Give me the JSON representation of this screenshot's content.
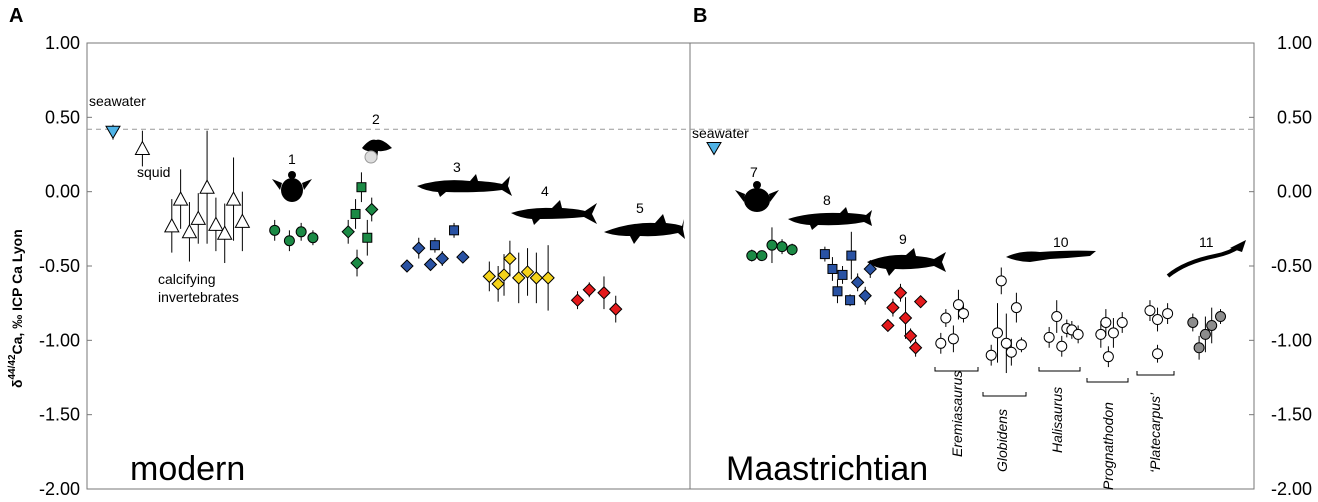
{
  "chart_data": {
    "type": "scatter",
    "ylabel": {
      "main": "δ",
      "sup": "44/42",
      "rest": "Ca, ‰ ICP Ca Lyon"
    },
    "ylim": [
      -2.0,
      1.0
    ],
    "yticks": [
      "1.00",
      "0.50",
      "0.00",
      "-0.50",
      "-1.00",
      "-1.50",
      "-2.00"
    ],
    "reference_line": {
      "label": "seawater",
      "y": 0.42,
      "style": "dashed"
    },
    "panels": [
      {
        "letter": "A",
        "era": "modern",
        "annotations": [
          "seawater",
          "squid",
          "calcifying",
          "invertebrates"
        ],
        "group_numbers": [
          "1",
          "2",
          "3",
          "4",
          "5"
        ],
        "series": [
          {
            "name": "seawater",
            "marker": "triangle-down",
            "color": "#4fb3e6",
            "points": [
              {
                "x": 1,
                "y": 0.4,
                "err": 0.05
              }
            ]
          },
          {
            "name": "squid",
            "marker": "triangle-up",
            "color": "#ffffff",
            "points": [
              {
                "x": 2,
                "y": 0.29,
                "err": 0.12
              }
            ]
          },
          {
            "name": "calcifying invertebrates",
            "marker": "triangle-up",
            "color": "#ffffff",
            "points": [
              {
                "x": 3.0,
                "y": -0.23,
                "err": 0.18
              },
              {
                "x": 3.3,
                "y": -0.05,
                "err": 0.2
              },
              {
                "x": 3.6,
                "y": -0.27,
                "err": 0.2
              },
              {
                "x": 3.9,
                "y": -0.18,
                "err": 0.17
              },
              {
                "x": 4.2,
                "y": 0.03,
                "err": 0.38
              },
              {
                "x": 4.5,
                "y": -0.22,
                "err": 0.18
              },
              {
                "x": 4.8,
                "y": -0.28,
                "err": 0.2
              },
              {
                "x": 5.1,
                "y": -0.05,
                "err": 0.28
              },
              {
                "x": 5.4,
                "y": -0.2,
                "err": 0.2
              }
            ]
          },
          {
            "name": "1",
            "marker": "circle",
            "color": "#1b8a45",
            "points": [
              {
                "x": 6.5,
                "y": -0.26,
                "err": 0.07
              },
              {
                "x": 7.0,
                "y": -0.33,
                "err": 0.07
              },
              {
                "x": 7.4,
                "y": -0.27,
                "err": 0.06
              },
              {
                "x": 7.8,
                "y": -0.31,
                "err": 0.05
              }
            ]
          },
          {
            "name": "2-diamond",
            "marker": "diamond",
            "color": "#1b8a45",
            "points": [
              {
                "x": 9.0,
                "y": -0.27,
                "err": 0.08
              },
              {
                "x": 9.3,
                "y": -0.48,
                "err": 0.09
              },
              {
                "x": 9.8,
                "y": -0.12,
                "err": 0.08
              }
            ]
          },
          {
            "name": "2-square",
            "marker": "square",
            "color": "#1b8a45",
            "points": [
              {
                "x": 9.25,
                "y": -0.15,
                "err": 0.1
              },
              {
                "x": 9.45,
                "y": 0.03,
                "err": 0.1
              },
              {
                "x": 9.65,
                "y": -0.31,
                "err": 0.12
              }
            ]
          },
          {
            "name": "3-diamond",
            "marker": "diamond",
            "color": "#2952a3",
            "points": [
              {
                "x": 11.0,
                "y": -0.5,
                "err": 0.03
              },
              {
                "x": 11.4,
                "y": -0.38,
                "err": 0.07
              },
              {
                "x": 11.8,
                "y": -0.49,
                "err": 0.04
              },
              {
                "x": 12.2,
                "y": -0.45,
                "err": 0.05
              },
              {
                "x": 12.9,
                "y": -0.44,
                "err": 0.03
              }
            ]
          },
          {
            "name": "3-square",
            "marker": "square",
            "color": "#2952a3",
            "points": [
              {
                "x": 11.95,
                "y": -0.36,
                "err": 0.05
              },
              {
                "x": 12.6,
                "y": -0.26,
                "err": 0.05
              }
            ]
          },
          {
            "name": "4",
            "marker": "diamond",
            "color": "#f5d31a",
            "points": [
              {
                "x": 13.8,
                "y": -0.57,
                "err": 0.1
              },
              {
                "x": 14.1,
                "y": -0.62,
                "err": 0.12
              },
              {
                "x": 14.3,
                "y": -0.56,
                "err": 0.14
              },
              {
                "x": 14.5,
                "y": -0.45,
                "err": 0.12
              },
              {
                "x": 14.8,
                "y": -0.58,
                "err": 0.17
              },
              {
                "x": 15.1,
                "y": -0.54,
                "err": 0.16
              },
              {
                "x": 15.4,
                "y": -0.58,
                "err": 0.17
              },
              {
                "x": 15.8,
                "y": -0.58,
                "err": 0.22
              }
            ]
          },
          {
            "name": "5",
            "marker": "diamond",
            "color": "#e41a1c",
            "points": [
              {
                "x": 16.8,
                "y": -0.73,
                "err": 0.06
              },
              {
                "x": 17.2,
                "y": -0.66,
                "err": 0.05
              },
              {
                "x": 17.7,
                "y": -0.68,
                "err": 0.11
              },
              {
                "x": 18.1,
                "y": -0.79,
                "err": 0.09
              }
            ]
          }
        ]
      },
      {
        "letter": "B",
        "era": "Maastrichtian",
        "annotations": [
          "seawater"
        ],
        "group_numbers": [
          "7",
          "8",
          "9",
          "10",
          "11"
        ],
        "taxa": [
          "Eremiasaurus",
          "Globidens",
          "Halisaurus",
          "Prognathodon",
          "‘Platecarpus’"
        ],
        "series": [
          {
            "name": "seawater",
            "marker": "triangle-down",
            "color": "#4fb3e6",
            "points": [
              {
                "x": 1,
                "y": 0.29,
                "err": 0
              }
            ]
          },
          {
            "name": "7",
            "marker": "circle",
            "color": "#1b8a45",
            "points": [
              {
                "x": 2.5,
                "y": -0.43,
                "err": 0.04
              },
              {
                "x": 2.9,
                "y": -0.43,
                "err": 0.03
              },
              {
                "x": 3.3,
                "y": -0.36,
                "err": 0.12
              },
              {
                "x": 3.7,
                "y": -0.37,
                "err": 0.05
              },
              {
                "x": 4.1,
                "y": -0.39,
                "err": 0.04
              }
            ]
          },
          {
            "name": "8-square",
            "marker": "square",
            "color": "#2952a3",
            "points": [
              {
                "x": 5.4,
                "y": -0.42,
                "err": 0.05
              },
              {
                "x": 5.7,
                "y": -0.52,
                "err": 0.08
              },
              {
                "x": 5.9,
                "y": -0.67,
                "err": 0.08
              },
              {
                "x": 6.1,
                "y": -0.56,
                "err": 0.06
              },
              {
                "x": 6.4,
                "y": -0.73,
                "err": 0.04
              },
              {
                "x": 6.45,
                "y": -0.43,
                "err": 0.16
              }
            ]
          },
          {
            "name": "8-diamond",
            "marker": "diamond",
            "color": "#2952a3",
            "points": [
              {
                "x": 6.7,
                "y": -0.61,
                "err": 0.06
              },
              {
                "x": 7.0,
                "y": -0.7,
                "err": 0.06
              },
              {
                "x": 7.2,
                "y": -0.52,
                "err": 0.06
              }
            ]
          },
          {
            "name": "9",
            "marker": "diamond",
            "color": "#e41a1c",
            "points": [
              {
                "x": 7.9,
                "y": -0.9,
                "err": 0.04
              },
              {
                "x": 8.1,
                "y": -0.78,
                "err": 0.06
              },
              {
                "x": 8.4,
                "y": -0.68,
                "err": 0.06
              },
              {
                "x": 8.6,
                "y": -0.85,
                "err": 0.14
              },
              {
                "x": 8.8,
                "y": -0.97,
                "err": 0.05
              },
              {
                "x": 9.0,
                "y": -1.05,
                "err": 0.06
              },
              {
                "x": 9.2,
                "y": -0.74,
                "err": 0.04
              }
            ]
          },
          {
            "name": "Eremiasaurus",
            "marker": "circle",
            "color": "#ffffff",
            "points": [
              {
                "x": 10.0,
                "y": -1.02,
                "err": 0.07
              },
              {
                "x": 10.2,
                "y": -0.85,
                "err": 0.06
              },
              {
                "x": 10.5,
                "y": -0.99,
                "err": 0.09
              },
              {
                "x": 10.7,
                "y": -0.76,
                "err": 0.1
              },
              {
                "x": 10.9,
                "y": -0.82,
                "err": 0.06
              }
            ]
          },
          {
            "name": "Globidens",
            "marker": "circle",
            "color": "#ffffff",
            "points": [
              {
                "x": 12.0,
                "y": -1.1,
                "err": 0.07
              },
              {
                "x": 12.25,
                "y": -0.95,
                "err": 0.2
              },
              {
                "x": 12.4,
                "y": -0.6,
                "err": 0.09
              },
              {
                "x": 12.6,
                "y": -1.02,
                "err": 0.2
              },
              {
                "x": 12.8,
                "y": -1.08,
                "err": 0.09
              },
              {
                "x": 13.0,
                "y": -0.78,
                "err": 0.1
              },
              {
                "x": 13.2,
                "y": -1.03,
                "err": 0.05
              }
            ]
          },
          {
            "name": "Halisaurus",
            "marker": "circle",
            "color": "#ffffff",
            "points": [
              {
                "x": 14.3,
                "y": -0.98,
                "err": 0.07
              },
              {
                "x": 14.6,
                "y": -0.84,
                "err": 0.11
              },
              {
                "x": 14.8,
                "y": -1.04,
                "err": 0.07
              },
              {
                "x": 15.0,
                "y": -0.92,
                "err": 0.06
              },
              {
                "x": 15.2,
                "y": -0.93,
                "err": 0.06
              },
              {
                "x": 15.45,
                "y": -0.96,
                "err": 0.06
              }
            ]
          },
          {
            "name": "Prognathodon",
            "marker": "circle",
            "color": "#ffffff",
            "points": [
              {
                "x": 16.35,
                "y": -0.96,
                "err": 0.09
              },
              {
                "x": 16.55,
                "y": -0.88,
                "err": 0.09
              },
              {
                "x": 16.65,
                "y": -1.11,
                "err": 0.07
              },
              {
                "x": 16.85,
                "y": -0.95,
                "err": 0.1
              },
              {
                "x": 17.2,
                "y": -0.88,
                "err": 0.07
              }
            ]
          },
          {
            "name": "‘Platecarpus’",
            "marker": "circle",
            "color": "#ffffff",
            "points": [
              {
                "x": 18.3,
                "y": -0.8,
                "err": 0.07
              },
              {
                "x": 18.6,
                "y": -1.09,
                "err": 0.06
              },
              {
                "x": 18.6,
                "y": -0.86,
                "err": 0.08
              },
              {
                "x": 19.0,
                "y": -0.82,
                "err": 0.07
              }
            ]
          },
          {
            "name": "11",
            "marker": "circle",
            "color": "#8c8c8c",
            "points": [
              {
                "x": 20.0,
                "y": -0.88,
                "err": 0.06
              },
              {
                "x": 20.25,
                "y": -1.05,
                "err": 0.08
              },
              {
                "x": 20.5,
                "y": -0.96,
                "err": 0.12
              },
              {
                "x": 20.75,
                "y": -0.9,
                "err": 0.12
              },
              {
                "x": 21.1,
                "y": -0.84,
                "err": 0.05
              }
            ]
          }
        ]
      }
    ]
  }
}
